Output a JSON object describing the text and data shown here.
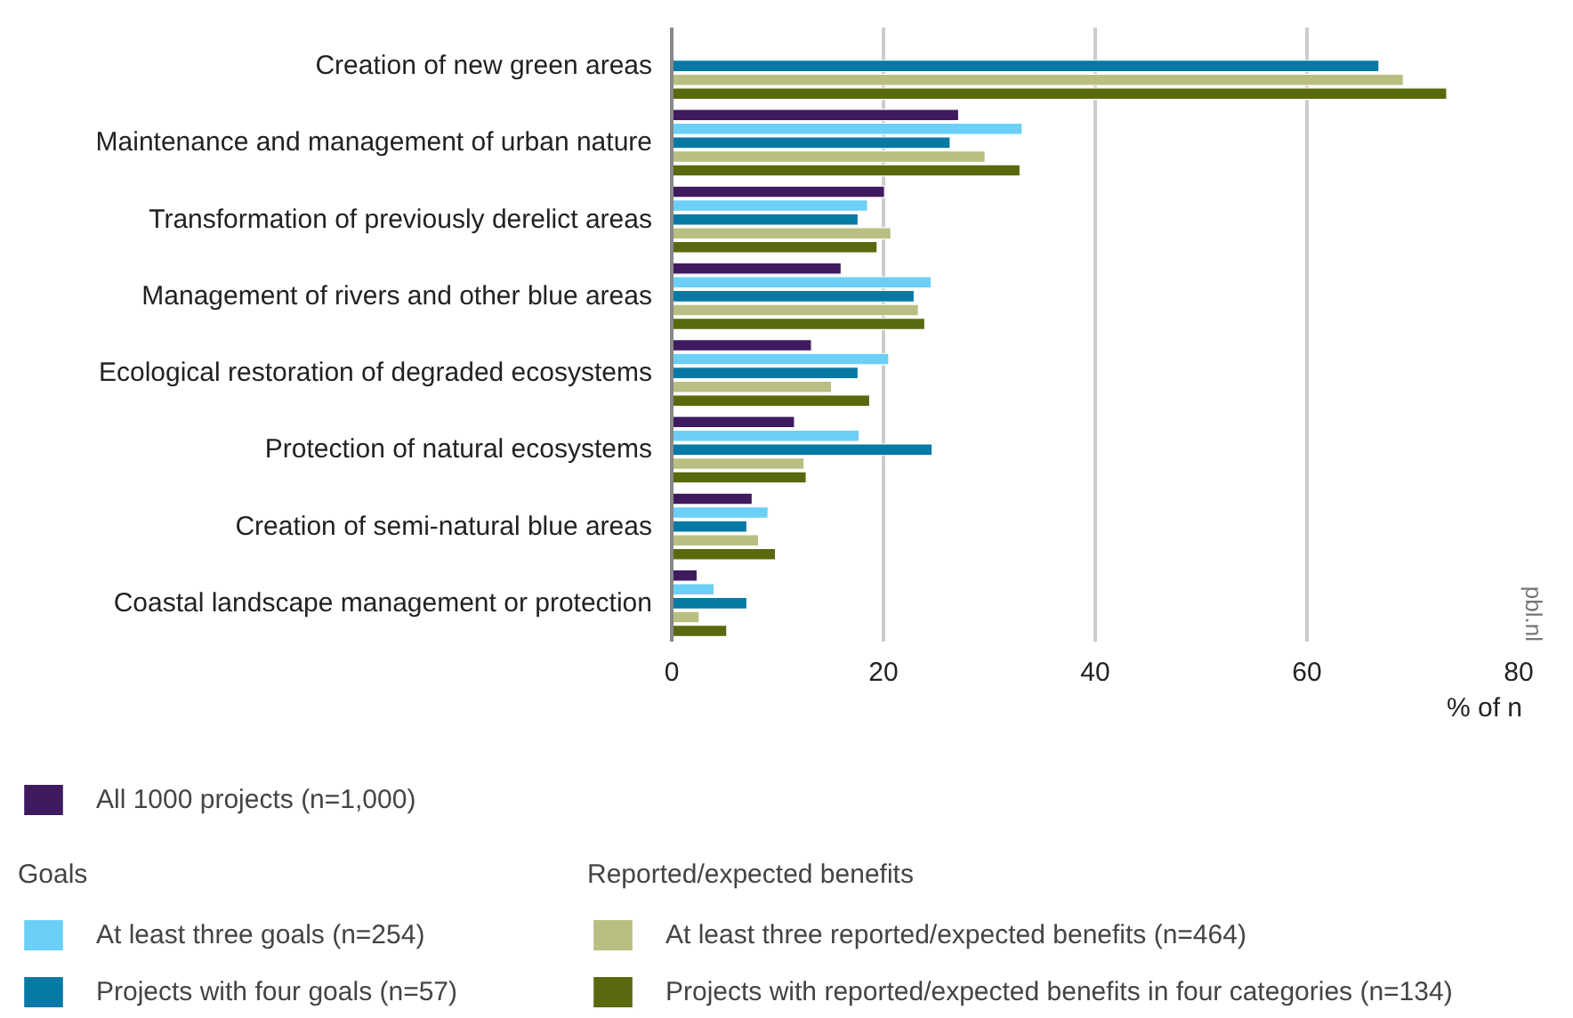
{
  "chart_data": {
    "type": "bar",
    "orientation": "horizontal",
    "categories": [
      "Creation of new green areas",
      "Maintenance and management of urban nature",
      "Transformation of previously derelict areas",
      "Management of rivers and other blue areas",
      "Ecological restoration of degraded ecosystems",
      "Protection of natural ecosystems",
      "Creation of semi-natural blue areas",
      "Coastal landscape management or protection"
    ],
    "series": [
      {
        "name": "All 1000 projects (n=1,000)",
        "color": "#3f1a5e",
        "values": [
          null,
          27.1,
          20.1,
          16.0,
          13.2,
          11.6,
          7.6,
          2.4
        ]
      },
      {
        "name": "At least three goals (n=254)",
        "color": "#6bcff6",
        "values": [
          null,
          33.1,
          18.5,
          24.5,
          20.5,
          17.7,
          9.1,
          4.0
        ]
      },
      {
        "name": "Projects with four goals (n=57)",
        "color": "#0779a5",
        "values": [
          66.8,
          26.3,
          17.6,
          22.9,
          17.6,
          24.6,
          7.1,
          7.1
        ]
      },
      {
        "name": "At least three reported/expected benefits (n=464)",
        "color": "#b9bf82",
        "values": [
          69.1,
          29.6,
          20.7,
          23.3,
          15.1,
          12.5,
          8.2,
          2.6
        ]
      },
      {
        "name": "Projects with reported/expected benefits in four categories (n=134)",
        "color": "#586a0d",
        "values": [
          73.2,
          32.9,
          19.4,
          23.9,
          18.7,
          12.7,
          9.8,
          5.2
        ]
      }
    ],
    "xlim": [
      0,
      80
    ],
    "xticks": [
      0,
      20,
      40,
      60,
      80
    ],
    "xlabel": "% of n",
    "grid": "x",
    "legend": "bottom",
    "annotations": [
      "Goals",
      "Reported/expected benefits",
      "pbl.nl"
    ]
  }
}
